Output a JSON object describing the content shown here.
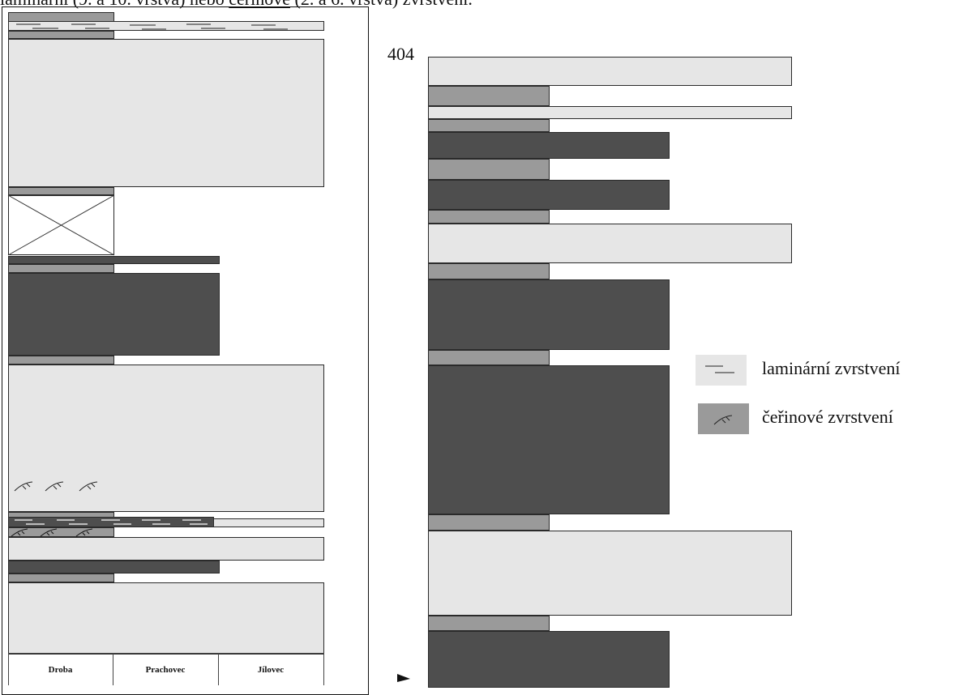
{
  "page_text": {
    "top_line_prefix": "laminární (9. a 10. vrstva) nebo ",
    "top_line_underlined": "čeřinové",
    "top_line_suffix": " (2. a 6. vrstva) zvrstvení."
  },
  "left_column": {
    "labels": [
      "Droba",
      "Prachovec",
      "Jílovec"
    ]
  },
  "right_column": {
    "depth_label": "404"
  },
  "legend": {
    "items": [
      {
        "label": "laminární zvrstvení",
        "icon": "laminar-bedding-icon",
        "color": "#e6e6e6"
      },
      {
        "label": "čeřinové zvrstvení",
        "icon": "ripple-bedding-icon",
        "color": "#9a9a9a"
      }
    ]
  },
  "colors": {
    "light": "#e6e6e6",
    "mid": "#9a9a9a",
    "dark": "#4e4e4e"
  }
}
